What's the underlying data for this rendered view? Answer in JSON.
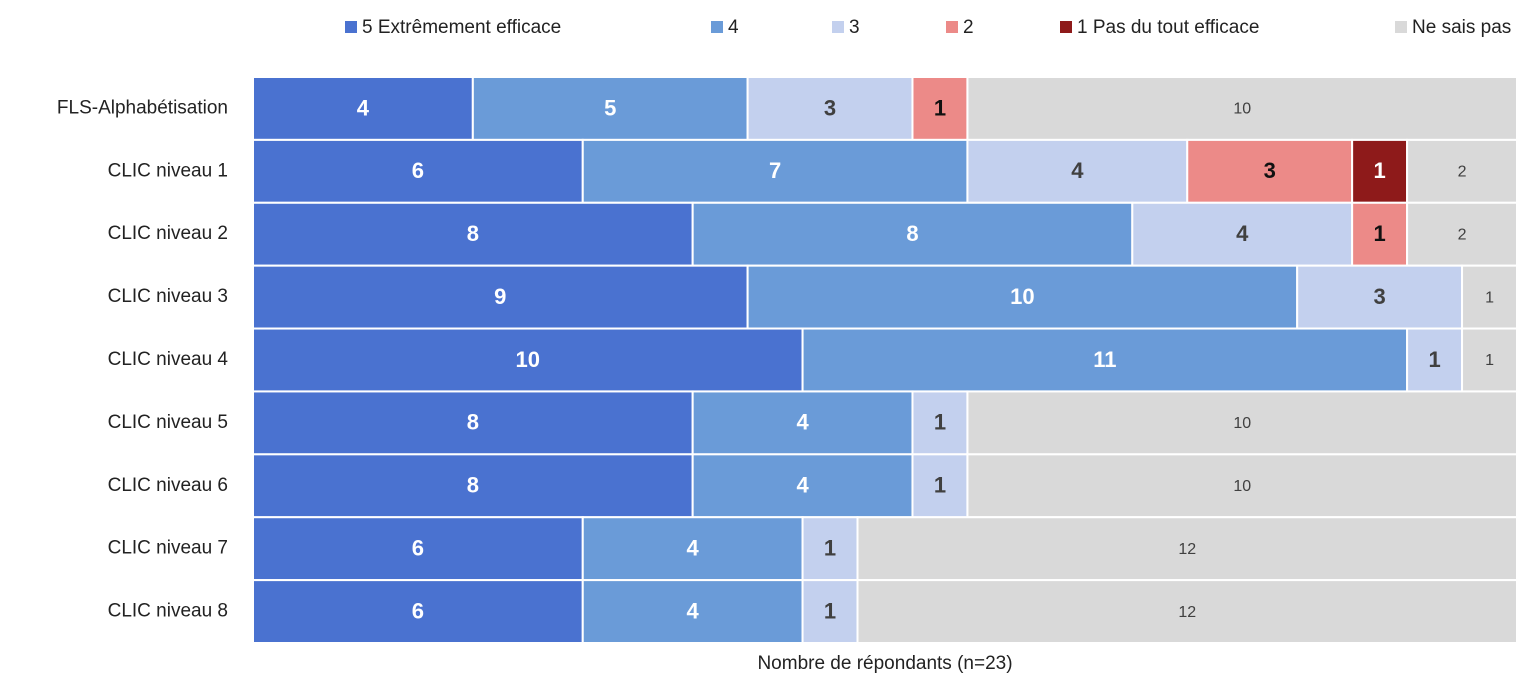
{
  "chart_data": {
    "type": "stacked-bar-horizontal",
    "xlabel": "Nombre de répondants (n=23)",
    "categories": [
      "FLS-Alphabétisation",
      "CLIC niveau 1",
      "CLIC niveau 2",
      "CLIC niveau 3",
      "CLIC niveau 4",
      "CLIC niveau 5",
      "CLIC niveau 6",
      "CLIC niveau 7",
      "CLIC niveau 8"
    ],
    "xlim": [
      0,
      23
    ],
    "legend": "top",
    "series": [
      {
        "name": "5 Extrêmement efficace",
        "color": "#4a72d0",
        "values": [
          4,
          6,
          8,
          9,
          10,
          8,
          8,
          6,
          6
        ]
      },
      {
        "name": "4",
        "color": "#6a9bd8",
        "values": [
          5,
          7,
          8,
          10,
          11,
          4,
          4,
          4,
          4
        ]
      },
      {
        "name": "3",
        "color": "#c3d0ee",
        "values": [
          3,
          4,
          4,
          3,
          1,
          1,
          1,
          1,
          1
        ]
      },
      {
        "name": "2",
        "color": "#ec8a88",
        "values": [
          1,
          3,
          1,
          null,
          null,
          null,
          null,
          null,
          null
        ]
      },
      {
        "name": "1 Pas du tout efficace",
        "color": "#8e1a1a",
        "values": [
          null,
          1,
          null,
          null,
          null,
          null,
          null,
          null,
          null
        ]
      },
      {
        "name": "Ne sais pas",
        "color": "#d9d9d9",
        "values": [
          10,
          2,
          2,
          1,
          1,
          10,
          10,
          12,
          12
        ]
      }
    ]
  }
}
